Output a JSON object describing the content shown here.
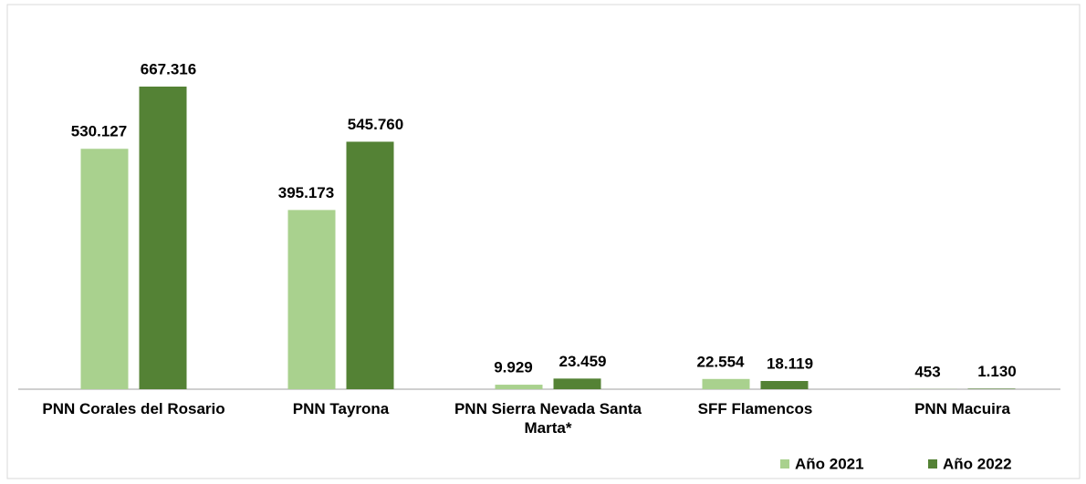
{
  "chart_data": {
    "type": "bar",
    "categories": [
      "PNN Corales del Rosario",
      "PNN Tayrona",
      "PNN Sierra Nevada Santa Marta*",
      "SFF Flamencos",
      "PNN Macuira"
    ],
    "series": [
      {
        "name": "Año 2021",
        "color": "#a9d18e",
        "values": [
          530127,
          395173,
          9929,
          22554,
          453
        ],
        "value_labels": [
          "530.127",
          "395.173",
          "9.929",
          "22.554",
          "453"
        ]
      },
      {
        "name": "Año 2022",
        "color": "#548235",
        "values": [
          667316,
          545760,
          23459,
          18119,
          1130
        ],
        "value_labels": [
          "667.316",
          "545.760",
          "23.459",
          "18.119",
          "1.130"
        ]
      }
    ],
    "legend": "bottom-right"
  }
}
